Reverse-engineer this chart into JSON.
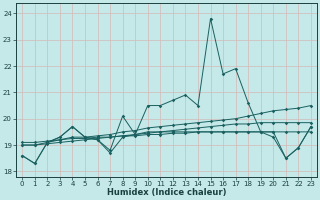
{
  "title": "",
  "xlabel": "Humidex (Indice chaleur)",
  "bg_color": "#c5e8e8",
  "grid_color": "#b0d8d8",
  "line_color": "#1a6060",
  "xlim": [
    -0.5,
    23.5
  ],
  "ylim": [
    17.8,
    24.4
  ],
  "yticks": [
    18,
    19,
    20,
    21,
    22,
    23,
    24
  ],
  "xticks": [
    0,
    1,
    2,
    3,
    4,
    5,
    6,
    7,
    8,
    9,
    10,
    11,
    12,
    13,
    14,
    15,
    16,
    17,
    18,
    19,
    20,
    21,
    22,
    23
  ],
  "lines": [
    {
      "x": [
        0,
        1,
        2,
        3,
        4,
        5,
        6,
        7,
        8,
        9,
        10,
        11,
        12,
        13,
        14,
        15,
        16,
        17,
        18,
        19,
        20,
        21,
        22,
        23
      ],
      "y": [
        18.6,
        18.3,
        19.1,
        19.3,
        19.7,
        19.3,
        19.2,
        18.8,
        20.1,
        19.4,
        20.5,
        20.5,
        20.7,
        20.9,
        20.5,
        23.8,
        21.7,
        21.9,
        20.6,
        19.5,
        19.5,
        18.5,
        18.9,
        19.7
      ]
    },
    {
      "x": [
        0,
        1,
        2,
        3,
        4,
        5,
        6,
        7,
        8,
        9,
        10,
        11,
        12,
        13,
        14,
        15,
        16,
        17,
        18,
        19,
        20,
        21,
        22,
        23
      ],
      "y": [
        19.0,
        19.0,
        19.1,
        19.2,
        19.3,
        19.3,
        19.35,
        19.4,
        19.5,
        19.55,
        19.65,
        19.7,
        19.75,
        19.8,
        19.85,
        19.9,
        19.95,
        20.0,
        20.1,
        20.2,
        20.3,
        20.35,
        20.4,
        20.5
      ]
    },
    {
      "x": [
        0,
        1,
        2,
        3,
        4,
        5,
        6,
        7,
        8,
        9,
        10,
        11,
        12,
        13,
        14,
        15,
        16,
        17,
        18,
        19,
        20,
        21,
        22,
        23
      ],
      "y": [
        19.0,
        19.0,
        19.05,
        19.1,
        19.15,
        19.2,
        19.25,
        19.3,
        19.35,
        19.4,
        19.45,
        19.5,
        19.55,
        19.6,
        19.65,
        19.7,
        19.75,
        19.8,
        19.8,
        19.85,
        19.85,
        19.85,
        19.85,
        19.85
      ]
    },
    {
      "x": [
        0,
        1,
        2,
        3,
        4,
        5,
        6,
        7,
        8,
        9,
        10,
        11,
        12,
        13,
        14,
        15,
        16,
        17,
        18,
        19,
        20,
        21,
        22,
        23
      ],
      "y": [
        19.1,
        19.1,
        19.15,
        19.2,
        19.25,
        19.25,
        19.3,
        19.3,
        19.35,
        19.35,
        19.4,
        19.4,
        19.45,
        19.45,
        19.5,
        19.5,
        19.5,
        19.5,
        19.5,
        19.5,
        19.5,
        19.5,
        19.5,
        19.5
      ]
    },
    {
      "x": [
        0,
        1,
        2,
        3,
        4,
        5,
        6,
        7,
        8,
        9,
        10,
        11,
        12,
        13,
        14,
        15,
        16,
        17,
        18,
        19,
        20,
        21,
        22,
        23
      ],
      "y": [
        18.6,
        18.3,
        19.1,
        19.3,
        19.7,
        19.3,
        19.2,
        18.7,
        19.3,
        19.4,
        19.5,
        19.5,
        19.5,
        19.5,
        19.5,
        19.5,
        19.5,
        19.5,
        19.5,
        19.5,
        19.3,
        18.5,
        18.9,
        19.7
      ]
    }
  ]
}
